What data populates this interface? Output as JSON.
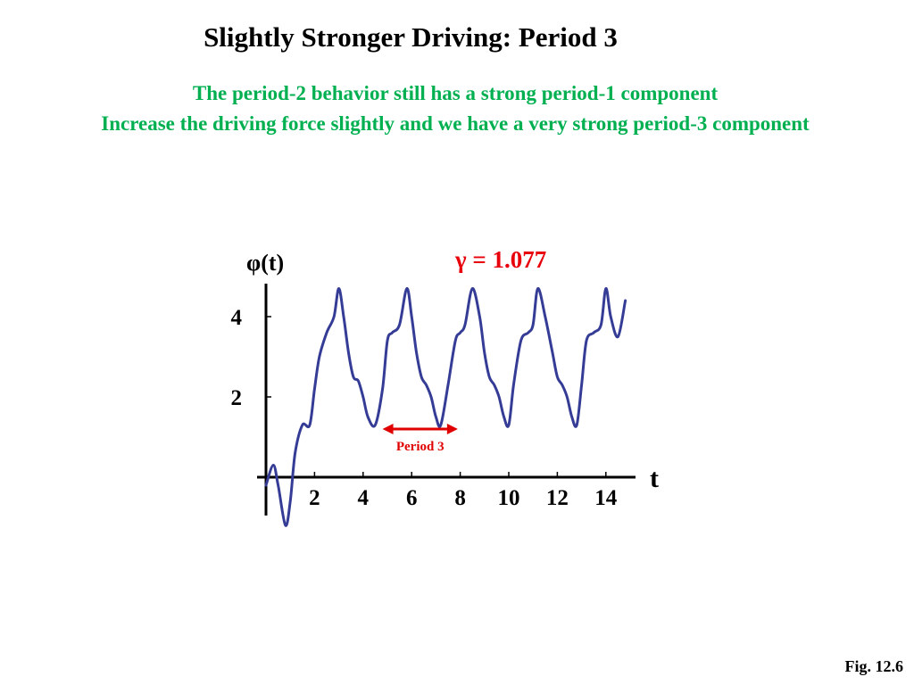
{
  "title": "Slightly Stronger Driving: Period 3",
  "subtitle_lines": [
    "The period-2 behavior still has a strong period-1 component",
    "Increase the driving force slightly and we have a very strong period-3 component"
  ],
  "fig_label": "Fig. 12.6",
  "colors": {
    "subtitle": "#00b050",
    "gamma": "#e8000b",
    "curve": "#353c96",
    "annotation": "#e00000"
  },
  "chart_data": {
    "type": "line",
    "title": "",
    "ylabel": "φ(t)",
    "xlabel": "t",
    "gamma_label": "γ = 1.077",
    "xlim": [
      -0.2,
      15.2
    ],
    "ylim": [
      -1.2,
      5.5
    ],
    "x_ticks": [
      2,
      4,
      6,
      8,
      10,
      12,
      14
    ],
    "x_tick_labels": [
      "2",
      "4",
      "6",
      "8",
      "10",
      "12",
      "14"
    ],
    "y_ticks": [
      2,
      4
    ],
    "y_tick_labels": [
      "2",
      "4"
    ],
    "annotation": {
      "label": "Period 3",
      "x_start": 4.8,
      "x_end": 7.9,
      "y": 1.2
    },
    "series": [
      {
        "x": [
          0.0,
          0.3,
          0.5,
          0.8,
          1.0,
          1.2,
          1.5,
          1.8,
          2.0,
          2.2,
          2.5,
          2.8,
          3.0,
          3.2,
          3.4,
          3.6,
          3.8,
          4.0,
          4.2,
          4.5,
          4.8,
          5.0,
          5.2,
          5.5,
          5.8,
          6.0,
          6.2,
          6.4,
          6.6,
          6.8,
          7.0,
          7.2,
          7.5,
          7.8,
          8.0,
          8.2,
          8.5,
          8.8,
          9.0,
          9.2,
          9.4,
          9.6,
          9.8,
          10.0,
          10.2,
          10.5,
          10.8,
          11.0,
          11.2,
          11.5,
          11.8,
          12.0,
          12.2,
          12.4,
          12.6,
          12.8,
          13.0,
          13.2,
          13.5,
          13.8,
          14.0,
          14.2,
          14.5,
          14.8
        ],
        "y": [
          -0.2,
          0.3,
          -0.2,
          -1.2,
          -0.6,
          0.6,
          1.3,
          1.3,
          2.2,
          3.0,
          3.6,
          4.0,
          4.7,
          4.0,
          3.1,
          2.5,
          2.4,
          2.0,
          1.5,
          1.3,
          2.2,
          3.4,
          3.6,
          3.8,
          4.7,
          4.0,
          3.1,
          2.5,
          2.3,
          2.0,
          1.5,
          1.3,
          2.3,
          3.4,
          3.6,
          3.8,
          4.7,
          4.0,
          3.1,
          2.5,
          2.3,
          2.0,
          1.5,
          1.3,
          2.3,
          3.4,
          3.6,
          3.8,
          4.7,
          4.0,
          3.1,
          2.5,
          2.3,
          2.0,
          1.5,
          1.3,
          2.3,
          3.4,
          3.6,
          3.8,
          4.7,
          4.0,
          3.5,
          4.4
        ]
      }
    ]
  }
}
